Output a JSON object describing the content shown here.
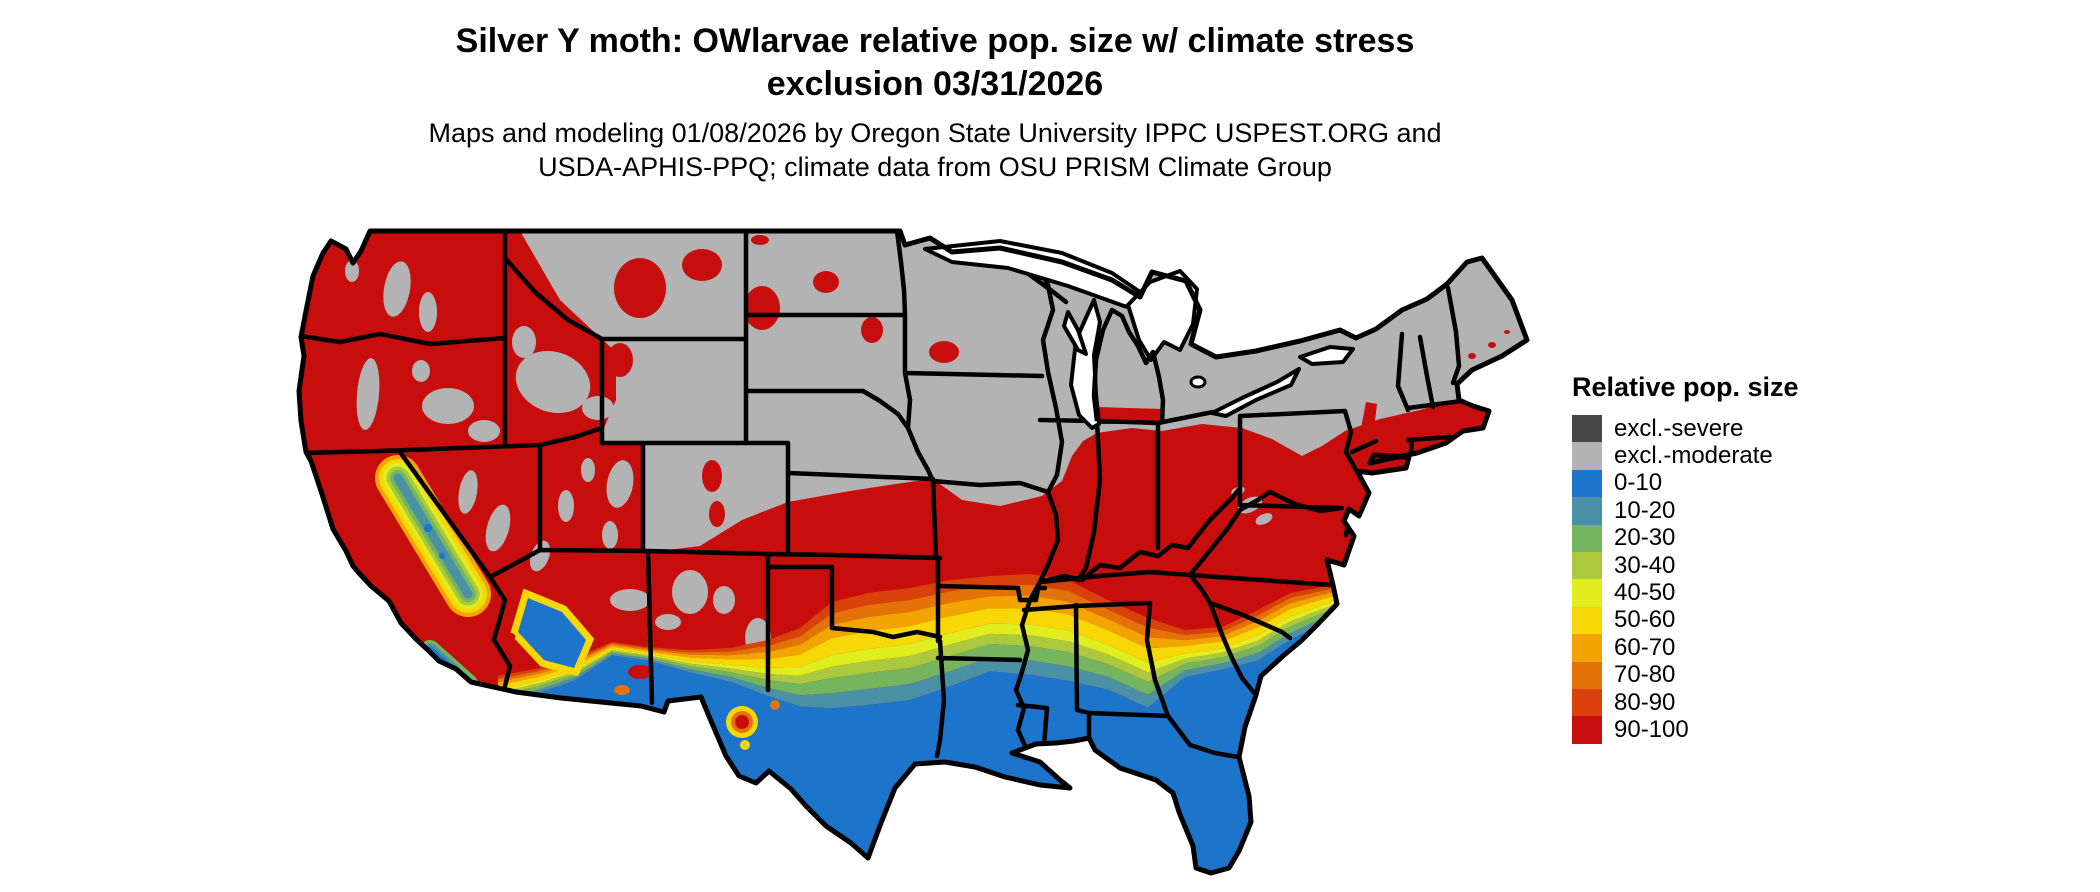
{
  "header": {
    "title_line1": "Silver Y moth: OWlarvae relative pop. size w/ climate stress",
    "title_line2": "exclusion 03/31/2026",
    "subtitle_line1": "Maps and modeling 01/08/2026 by Oregon State University IPPC USPEST.ORG and",
    "subtitle_line2": "USDA-APHIS-PPQ; climate data from OSU PRISM Climate Group"
  },
  "legend": {
    "title": "Relative pop. size",
    "entries": [
      {
        "label": "excl.-severe",
        "color": "#474747"
      },
      {
        "label": "excl.-moderate",
        "color": "#b3b3b3"
      },
      {
        "label": "0-10",
        "color": "#1c75cb"
      },
      {
        "label": "10-20",
        "color": "#4a91a5"
      },
      {
        "label": "20-30",
        "color": "#74b55e"
      },
      {
        "label": "30-40",
        "color": "#abc93e"
      },
      {
        "label": "40-50",
        "color": "#e0ed1e"
      },
      {
        "label": "50-60",
        "color": "#f8d706"
      },
      {
        "label": "60-70",
        "color": "#f2a403"
      },
      {
        "label": "70-80",
        "color": "#e37309"
      },
      {
        "label": "80-90",
        "color": "#d84109"
      },
      {
        "label": "90-100",
        "color": "#c80d0d"
      }
    ]
  },
  "map": {
    "region_label": "Contiguous United States",
    "state_border_color": "#000000",
    "water_color": "#ffffff",
    "page_background": "#ffffff"
  }
}
